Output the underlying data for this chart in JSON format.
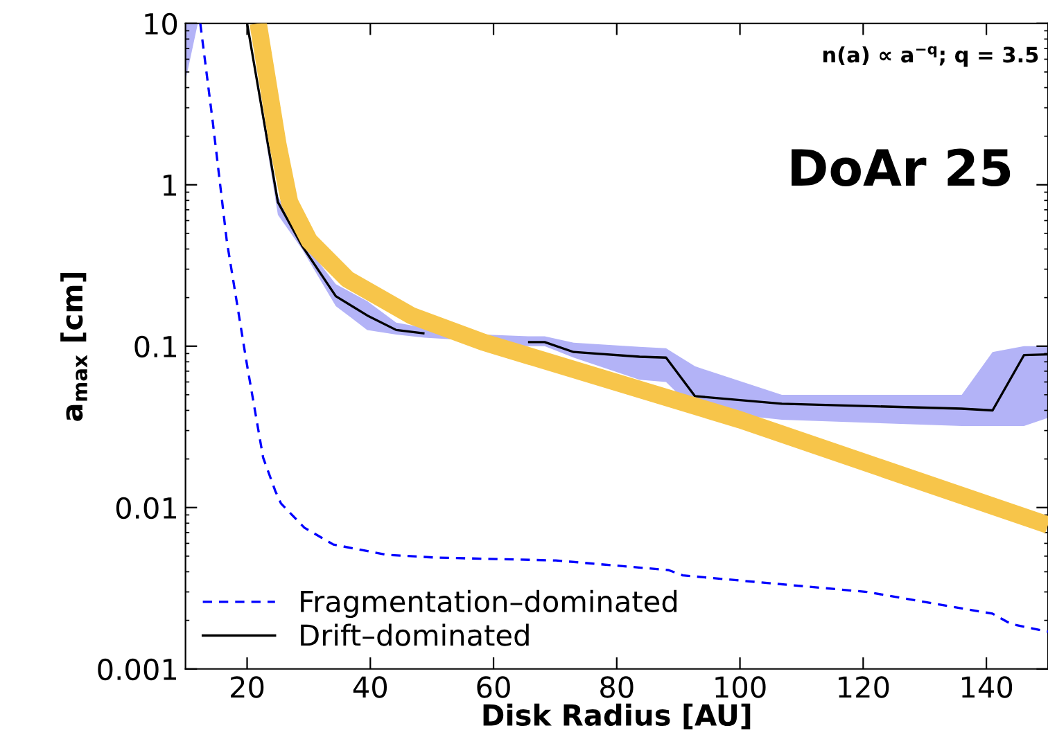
{
  "chart_data": {
    "type": "line",
    "xlabel": "Disk Radius [AU]",
    "ylabel": "a$_{max}$ [cm]",
    "log": "y",
    "xlim": [
      10,
      150
    ],
    "xticks": [
      20,
      40,
      60,
      80,
      100,
      120,
      140
    ],
    "ylim": [
      0.001,
      10
    ],
    "yticks": [
      {
        "value": 0.001,
        "label": "0.001"
      },
      {
        "value": 0.01,
        "label": "0.01"
      },
      {
        "value": 0.1,
        "label": "0.1"
      },
      {
        "value": 1,
        "label": "1"
      },
      {
        "value": 10,
        "label": "10"
      }
    ],
    "grid": false,
    "legend": "bottom left",
    "marker": "none",
    "annotations": [
      "n(a) ∝ a$^{−q}$; q = 3.5",
      "DoAr 25"
    ],
    "series": [
      {
        "name": "Fragmentation–dominated",
        "color": "#0000ff",
        "line_style": "dashed",
        "x": [
          12.4,
          14.4,
          16.7,
          19.9,
          22.6,
          24.6,
          25.5,
          29.3,
          34,
          42.6,
          50.5,
          70.1,
          88.4,
          90.7,
          120.6,
          141,
          144,
          150
        ],
        "values": [
          10,
          2.5,
          0.45,
          0.08,
          0.0204,
          0.0126,
          0.0106,
          0.0075,
          0.0059,
          0.0051,
          0.0049,
          0.0047,
          0.0041,
          0.0038,
          0.003,
          0.0022,
          0.0019,
          0.0017
        ]
      },
      {
        "name": "Drift–dominated",
        "color": "#000000",
        "line_style": "solid",
        "x": [
          10,
          12,
          20,
          25,
          28.9,
          34.4,
          39.5,
          44.2,
          48.8,
          53.5,
          65.6,
          68.3,
          73,
          83.7,
          88,
          92.7,
          106.8,
          136,
          141,
          146.1,
          150
        ],
        "values": [
          null,
          null,
          10,
          0.78,
          0.42,
          0.204,
          0.155,
          0.126,
          0.12,
          null,
          0.106,
          0.106,
          0.092,
          0.086,
          0.085,
          0.049,
          0.044,
          0.041,
          0.04,
          0.088,
          0.089
        ],
        "lower": [
          4.4,
          10,
          10,
          0.65,
          0.4,
          0.177,
          0.126,
          0.118,
          0.113,
          0.11,
          0.1,
          0.1,
          0.085,
          0.062,
          0.06,
          0.04,
          0.035,
          0.032,
          0.032,
          0.032,
          0.036
        ],
        "upper": [
          10,
          10,
          10,
          0.85,
          0.45,
          0.242,
          0.19,
          0.14,
          0.13,
          0.12,
          0.115,
          0.115,
          0.105,
          0.099,
          0.097,
          0.075,
          0.05,
          0.05,
          0.092,
          0.1,
          0.1
        ]
      },
      {
        "color": "#f7c54a",
        "line_style": "solid",
        "x": [
          21.8,
          25,
          26.9,
          30.1,
          36.3,
          46.6,
          58.3,
          100,
          150
        ],
        "values": [
          10,
          1.78,
          0.78,
          0.45,
          0.26,
          0.155,
          0.106,
          0.035,
          0.0078
        ]
      }
    ]
  }
}
